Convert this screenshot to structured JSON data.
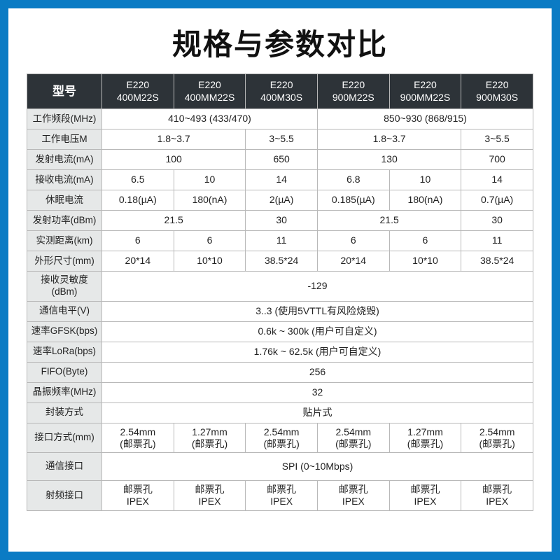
{
  "title": "规格与参数对比",
  "header_label": "型号",
  "models": [
    {
      "l1": "E220",
      "l2": "400M22S"
    },
    {
      "l1": "E220",
      "l2": "400MM22S"
    },
    {
      "l1": "E220",
      "l2": "400M30S"
    },
    {
      "l1": "E220",
      "l2": "900M22S"
    },
    {
      "l1": "E220",
      "l2": "900MM22S"
    },
    {
      "l1": "E220",
      "l2": "900M30S"
    }
  ],
  "rows": {
    "freq": {
      "label": "工作频段(MHz)",
      "a": "410~493 (433/470)",
      "b": "850~930 (868/915)"
    },
    "volt": {
      "label": "工作电压M",
      "a": "1.8~3.7",
      "b": "3~5.5",
      "c": "1.8~3.7",
      "d": "3~5.5"
    },
    "tx_cur": {
      "label": "发射电流(mA)",
      "a": "100",
      "b": "650",
      "c": "130",
      "d": "700"
    },
    "rx_cur": {
      "label": "接收电流(mA)",
      "v": [
        "6.5",
        "10",
        "14",
        "6.8",
        "10",
        "14"
      ]
    },
    "sleep": {
      "label": "休眠电流",
      "v": [
        "0.18(µA)",
        "180(nA)",
        "2(µA)",
        "0.185(µA)",
        "180(nA)",
        "0.7(µA)"
      ]
    },
    "tx_pwr": {
      "label": "发射功率(dBm)",
      "a": "21.5",
      "b": "30",
      "c": "21.5",
      "d": "30"
    },
    "dist": {
      "label": "实测距离(km)",
      "v": [
        "6",
        "6",
        "11",
        "6",
        "6",
        "11"
      ]
    },
    "size": {
      "label": "外形尺寸(mm)",
      "v": [
        "20*14",
        "10*10",
        "38.5*24",
        "20*14",
        "10*10",
        "38.5*24"
      ]
    },
    "rx_sens": {
      "label": "接收灵敏度(dBm)",
      "full": "-129"
    },
    "logic": {
      "label": "通信电平(V)",
      "full": "3..3 (使用5VTTL有风险烧毁)"
    },
    "gfsk": {
      "label": "速率GFSK(bps)",
      "full": "0.6k ~ 300k (用户可自定义)"
    },
    "lora": {
      "label": "速率LoRa(bps)",
      "full": "1.76k ~ 62.5k (用户可自定义)"
    },
    "fifo": {
      "label": "FIFO(Byte)",
      "full": "256"
    },
    "xtal": {
      "label": "晶振频率(MHz)",
      "full": "32"
    },
    "pkg": {
      "label": "封装方式",
      "full": "贴片式"
    },
    "conn": {
      "label": "接口方式(mm)",
      "v": [
        {
          "l1": "2.54mm",
          "l2": "(邮票孔)"
        },
        {
          "l1": "1.27mm",
          "l2": "(邮票孔)"
        },
        {
          "l1": "2.54mm",
          "l2": "(邮票孔)"
        },
        {
          "l1": "2.54mm",
          "l2": "(邮票孔)"
        },
        {
          "l1": "1.27mm",
          "l2": "(邮票孔)"
        },
        {
          "l1": "2.54mm",
          "l2": "(邮票孔)"
        }
      ]
    },
    "comm": {
      "label": "通信接口",
      "full": "SPI (0~10Mbps)"
    },
    "rf": {
      "label": "射频接口",
      "v": [
        {
          "l1": "邮票孔",
          "l2": "IPEX"
        },
        {
          "l1": "邮票孔",
          "l2": "IPEX"
        },
        {
          "l1": "邮票孔",
          "l2": "IPEX"
        },
        {
          "l1": "邮票孔",
          "l2": "IPEX"
        },
        {
          "l1": "邮票孔",
          "l2": "IPEX"
        },
        {
          "l1": "邮票孔",
          "l2": "IPEX"
        }
      ]
    }
  },
  "style": {
    "border_color": "#b8b8b8",
    "header_bg": "#2d3338",
    "header_fg": "#ffffff",
    "label_bg": "#e6e8e8",
    "page_border": "#0a7bc4",
    "font_size_body": 14,
    "font_size_title": 42
  }
}
